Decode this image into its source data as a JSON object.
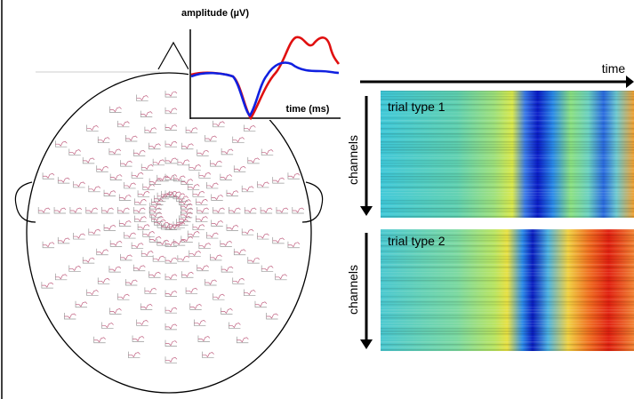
{
  "head_plot": {
    "inset": {
      "y_label": "amplitude (µV)",
      "x_label": "time (ms)"
    }
  },
  "heatmaps": {
    "time_label": "time",
    "panels": [
      {
        "title": "trial type 1",
        "channel_label": "channels"
      },
      {
        "title": "trial type 2",
        "channel_label": "channels"
      }
    ]
  }
}
